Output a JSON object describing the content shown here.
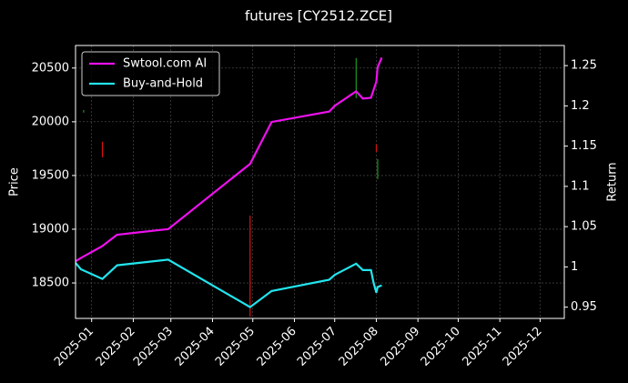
{
  "chart_data": {
    "type": "candlestick-line",
    "title": "futures [CY2512.ZCE]",
    "ylabel": "Price",
    "y2label": "Return",
    "x": [
      "2024-12-20",
      "2024-12-24",
      "2025-01-09",
      "2025-01-20",
      "2025-02-27",
      "2025-04-29",
      "2025-05-15",
      "2025-06-27",
      "2025-07-01",
      "2025-07-17",
      "2025-07-22",
      "2025-07-28",
      "2025-07-30",
      "2025-08-01",
      "2025-08-02",
      "2025-08-05"
    ],
    "series": [
      {
        "name": "Swtool.com AI",
        "color": "#ee11ee",
        "axis": "y2",
        "values": [
          1.007,
          1.011,
          1.026,
          1.04,
          1.047,
          1.128,
          1.18,
          1.193,
          1.2,
          1.218,
          1.209,
          1.21,
          1.22,
          1.23,
          1.248,
          1.26
        ]
      },
      {
        "name": "Buy-and-Hold",
        "color": "#22e5ee",
        "axis": "y2",
        "values": [
          1.005,
          0.997,
          0.985,
          1.002,
          1.009,
          0.95,
          0.97,
          0.984,
          0.99,
          1.004,
          0.996,
          0.996,
          0.98,
          0.968,
          0.975,
          0.977
        ]
      }
    ],
    "candles": {
      "x": [
        "2024-12-26",
        "2025-01-09",
        "2025-04-29",
        "2025-07-17",
        "2025-08-01",
        "2025-08-02"
      ],
      "high": [
        20110,
        19814,
        19127,
        20593,
        19788,
        19653
      ],
      "low": [
        20085,
        19670,
        18186,
        20220,
        19720,
        19466
      ],
      "colors": [
        "#1a9a1a",
        "#dd1111",
        "#dd1111",
        "#1a9a1a",
        "#dd1111",
        "#1a9a1a"
      ]
    },
    "xlim": [
      "2024-12-20",
      "2025-12-19"
    ],
    "xticks": [
      "2025-01",
      "2025-02",
      "2025-03",
      "2025-04",
      "2025-05",
      "2025-06",
      "2025-07",
      "2025-08",
      "2025-09",
      "2025-10",
      "2025-11",
      "2025-12"
    ],
    "ylim": [
      18170,
      20710
    ],
    "yticks": [
      18500,
      19000,
      19500,
      20000,
      20500
    ],
    "y2lim": [
      0.936,
      1.275
    ],
    "y2ticks": [
      0.95,
      1.0,
      1.05,
      1.1,
      1.15,
      1.2,
      1.25
    ],
    "grid": true,
    "legend": "upper left"
  }
}
